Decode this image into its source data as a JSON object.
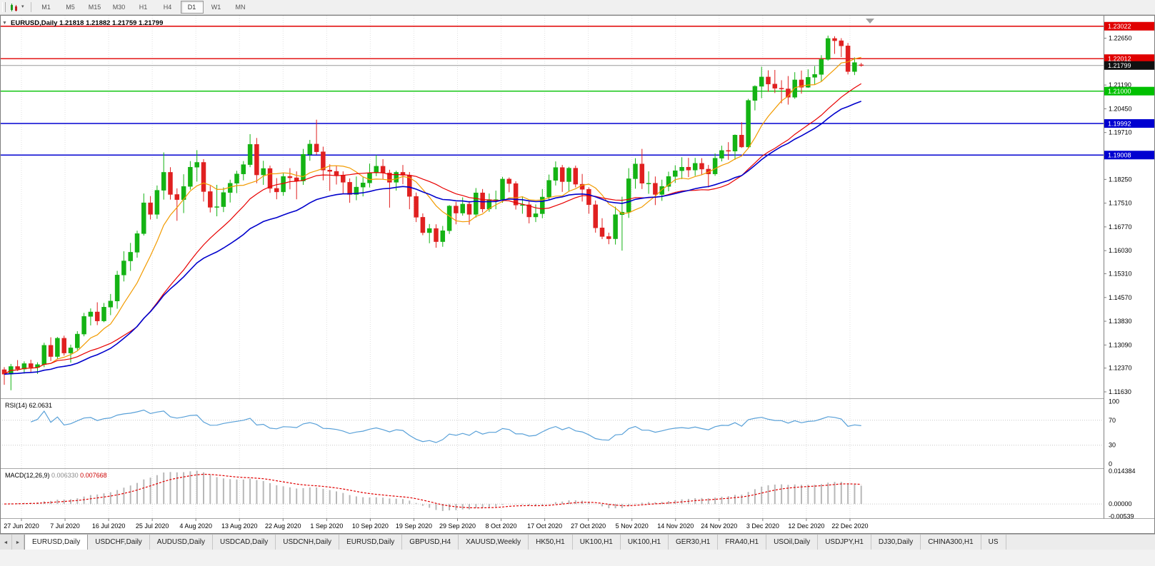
{
  "toolbar": {
    "timeframes": [
      "M1",
      "M5",
      "M15",
      "M30",
      "H1",
      "H4",
      "D1",
      "W1",
      "MN"
    ],
    "active_timeframe": "D1",
    "caret": "▾"
  },
  "window": {
    "title_line": "EURUSD,Daily 1.21818 1.21882 1.21759 1.21799",
    "dropdown_caret": "▼"
  },
  "chart_data": {
    "type": "candlestick",
    "symbol": "EURUSD",
    "period": "Daily",
    "ohlc_current": {
      "open": "1.21818",
      "high": "1.21882",
      "low": "1.21759",
      "close": "1.21799"
    },
    "current_price": 1.21799,
    "current_price_label": "1.21799",
    "price_axis": {
      "min": 1.1143,
      "max": 1.2335,
      "ticks": [
        {
          "v": 1.2265,
          "text": "1.22650"
        },
        {
          "v": 1.2119,
          "text": "1.21190"
        },
        {
          "v": 1.2045,
          "text": "1.20450"
        },
        {
          "v": 1.1971,
          "text": "1.19710"
        },
        {
          "v": 1.1825,
          "text": "1.18250"
        },
        {
          "v": 1.1751,
          "text": "1.17510"
        },
        {
          "v": 1.1677,
          "text": "1.16770"
        },
        {
          "v": 1.1603,
          "text": "1.16030"
        },
        {
          "v": 1.1531,
          "text": "1.15310"
        },
        {
          "v": 1.1457,
          "text": "1.14570"
        },
        {
          "v": 1.1383,
          "text": "1.13830"
        },
        {
          "v": 1.1309,
          "text": "1.13090"
        },
        {
          "v": 1.1237,
          "text": "1.12370"
        },
        {
          "v": 1.1163,
          "text": "1.11630"
        }
      ]
    },
    "horizontal_lines": [
      {
        "price": 1.23022,
        "label": "1.23022",
        "color": "#e00000"
      },
      {
        "price": 1.22012,
        "label": "1.22012",
        "color": "#e00000"
      },
      {
        "price": 1.21,
        "label": "1.21000",
        "color": "#00c000"
      },
      {
        "price": 1.19992,
        "label": "1.19992",
        "color": "#0000d0"
      },
      {
        "price": 1.19008,
        "label": "1.19008",
        "color": "#0000d0"
      }
    ],
    "x_labels": [
      "27 Jun 2020",
      "7 Jul 2020",
      "16 Jul 2020",
      "25 Jul 2020",
      "4 Aug 2020",
      "13 Aug 2020",
      "22 Aug 2020",
      "1 Sep 2020",
      "10 Sep 2020",
      "19 Sep 2020",
      "29 Sep 2020",
      "8 Oct 2020",
      "17 Oct 2020",
      "27 Oct 2020",
      "5 Nov 2020",
      "14 Nov 2020",
      "24 Nov 2020",
      "3 Dec 2020",
      "12 Dec 2020",
      "22 Dec 2020"
    ],
    "colors": {
      "bull": "#14b314",
      "bear": "#e02020",
      "ma_fast": "#f29b00",
      "ma_mid": "#e80000",
      "ma_slow": "#0000cc",
      "grid": "#e0e0e0",
      "current_price_line": "#9a9a9a"
    },
    "moving_averages": [
      {
        "name": "fast",
        "period": 8,
        "type": "sma",
        "color_key": "ma_fast"
      },
      {
        "name": "mid",
        "period": 21,
        "type": "sma",
        "color_key": "ma_mid"
      },
      {
        "name": "slow",
        "period": 30,
        "type": "ema",
        "color_key": "ma_slow"
      }
    ],
    "candles": [
      [
        1.1232,
        1.124,
        1.1185,
        1.1218
      ],
      [
        1.1218,
        1.125,
        1.1168,
        1.1242
      ],
      [
        1.1242,
        1.1262,
        1.1228,
        1.1234
      ],
      [
        1.1234,
        1.1258,
        1.122,
        1.1251
      ],
      [
        1.1251,
        1.1263,
        1.1224,
        1.1239
      ],
      [
        1.1239,
        1.1255,
        1.1219,
        1.1248
      ],
      [
        1.1248,
        1.1316,
        1.124,
        1.1308
      ],
      [
        1.1308,
        1.1333,
        1.1259,
        1.1273
      ],
      [
        1.1273,
        1.1334,
        1.1265,
        1.133
      ],
      [
        1.133,
        1.1338,
        1.1276,
        1.1284
      ],
      [
        1.1284,
        1.131,
        1.1254,
        1.13
      ],
      [
        1.13,
        1.1352,
        1.1293,
        1.1343
      ],
      [
        1.1343,
        1.1409,
        1.1336,
        1.1398
      ],
      [
        1.1398,
        1.1423,
        1.137,
        1.1412
      ],
      [
        1.1412,
        1.1442,
        1.1371,
        1.1384
      ],
      [
        1.1384,
        1.144,
        1.138,
        1.1427
      ],
      [
        1.1427,
        1.1468,
        1.1402,
        1.1446
      ],
      [
        1.1446,
        1.154,
        1.1422,
        1.1527
      ],
      [
        1.1527,
        1.1601,
        1.1507,
        1.1571
      ],
      [
        1.1571,
        1.1627,
        1.154,
        1.1598
      ],
      [
        1.1598,
        1.1665,
        1.1581,
        1.1656
      ],
      [
        1.1656,
        1.1781,
        1.165,
        1.1752
      ],
      [
        1.1752,
        1.1773,
        1.17,
        1.1716
      ],
      [
        1.1716,
        1.1806,
        1.1702,
        1.1791
      ],
      [
        1.1791,
        1.1909,
        1.1762,
        1.1847
      ],
      [
        1.1847,
        1.1863,
        1.1762,
        1.1778
      ],
      [
        1.1778,
        1.1797,
        1.1696,
        1.1762
      ],
      [
        1.1762,
        1.1841,
        1.172,
        1.1803
      ],
      [
        1.1803,
        1.1882,
        1.1793,
        1.1863
      ],
      [
        1.1863,
        1.1916,
        1.1818,
        1.1878
      ],
      [
        1.1878,
        1.1888,
        1.1756,
        1.1787
      ],
      [
        1.1787,
        1.1805,
        1.1722,
        1.1738
      ],
      [
        1.1738,
        1.1808,
        1.171,
        1.174
      ],
      [
        1.174,
        1.18,
        1.1723,
        1.1784
      ],
      [
        1.1784,
        1.1824,
        1.1753,
        1.1813
      ],
      [
        1.1813,
        1.1852,
        1.1782,
        1.1842
      ],
      [
        1.1842,
        1.1882,
        1.1822,
        1.1871
      ],
      [
        1.1871,
        1.1966,
        1.1863,
        1.1934
      ],
      [
        1.1934,
        1.1954,
        1.1813,
        1.1839
      ],
      [
        1.1839,
        1.1883,
        1.1808,
        1.1859
      ],
      [
        1.1859,
        1.1868,
        1.1783,
        1.1797
      ],
      [
        1.1797,
        1.1829,
        1.1763,
        1.1786
      ],
      [
        1.1786,
        1.1844,
        1.1774,
        1.1834
      ],
      [
        1.1834,
        1.186,
        1.1794,
        1.183
      ],
      [
        1.183,
        1.185,
        1.1763,
        1.182
      ],
      [
        1.182,
        1.192,
        1.1808,
        1.1903
      ],
      [
        1.1903,
        1.1948,
        1.1883,
        1.1935
      ],
      [
        1.1935,
        1.2011,
        1.1902,
        1.1911
      ],
      [
        1.1911,
        1.1927,
        1.1822,
        1.1854
      ],
      [
        1.1854,
        1.1872,
        1.1789,
        1.185
      ],
      [
        1.185,
        1.1868,
        1.1809,
        1.1838
      ],
      [
        1.1838,
        1.185,
        1.1781,
        1.1816
      ],
      [
        1.1816,
        1.1828,
        1.1752,
        1.1778
      ],
      [
        1.1778,
        1.1834,
        1.176,
        1.1801
      ],
      [
        1.1801,
        1.1832,
        1.1772,
        1.1814
      ],
      [
        1.1814,
        1.1874,
        1.18,
        1.1845
      ],
      [
        1.1845,
        1.1901,
        1.1835,
        1.1866
      ],
      [
        1.1866,
        1.1888,
        1.1826,
        1.1845
      ],
      [
        1.1845,
        1.1855,
        1.1737,
        1.1816
      ],
      [
        1.1816,
        1.1852,
        1.179,
        1.1847
      ],
      [
        1.1847,
        1.187,
        1.181,
        1.1838
      ],
      [
        1.1838,
        1.1848,
        1.1732,
        1.1772
      ],
      [
        1.1772,
        1.1784,
        1.1692,
        1.1707
      ],
      [
        1.1707,
        1.1719,
        1.1651,
        1.1659
      ],
      [
        1.1659,
        1.1686,
        1.1626,
        1.1672
      ],
      [
        1.1672,
        1.1685,
        1.1612,
        1.1631
      ],
      [
        1.1631,
        1.168,
        1.1615,
        1.1665
      ],
      [
        1.1665,
        1.1745,
        1.1655,
        1.1742
      ],
      [
        1.1742,
        1.1755,
        1.1685,
        1.172
      ],
      [
        1.172,
        1.1769,
        1.1712,
        1.1748
      ],
      [
        1.1748,
        1.1758,
        1.1684,
        1.1716
      ],
      [
        1.1716,
        1.1798,
        1.1706,
        1.1783
      ],
      [
        1.1783,
        1.1795,
        1.1722,
        1.1733
      ],
      [
        1.1733,
        1.1781,
        1.1724,
        1.1762
      ],
      [
        1.1762,
        1.179,
        1.1732,
        1.1762
      ],
      [
        1.1762,
        1.1833,
        1.1752,
        1.1826
      ],
      [
        1.1826,
        1.1831,
        1.1785,
        1.1812
      ],
      [
        1.1812,
        1.1819,
        1.1731,
        1.1745
      ],
      [
        1.1745,
        1.1772,
        1.1718,
        1.1746
      ],
      [
        1.1746,
        1.1758,
        1.1688,
        1.1708
      ],
      [
        1.1708,
        1.1747,
        1.1692,
        1.1718
      ],
      [
        1.1718,
        1.1795,
        1.1704,
        1.177
      ],
      [
        1.177,
        1.184,
        1.1762,
        1.1822
      ],
      [
        1.1822,
        1.1881,
        1.1806,
        1.1862
      ],
      [
        1.1862,
        1.187,
        1.1786,
        1.1818
      ],
      [
        1.1818,
        1.1864,
        1.1787,
        1.186
      ],
      [
        1.186,
        1.1868,
        1.18,
        1.181
      ],
      [
        1.181,
        1.1842,
        1.1756,
        1.1794
      ],
      [
        1.1794,
        1.18,
        1.1718,
        1.1746
      ],
      [
        1.1746,
        1.1759,
        1.1659,
        1.1674
      ],
      [
        1.1674,
        1.1704,
        1.1639,
        1.1647
      ],
      [
        1.1647,
        1.1659,
        1.1623,
        1.164
      ],
      [
        1.164,
        1.174,
        1.1622,
        1.1715
      ],
      [
        1.1715,
        1.1771,
        1.1603,
        1.1723
      ],
      [
        1.1723,
        1.186,
        1.1705,
        1.1827
      ],
      [
        1.1827,
        1.1891,
        1.1796,
        1.1873
      ],
      [
        1.1873,
        1.192,
        1.1795,
        1.1813
      ],
      [
        1.1813,
        1.185,
        1.178,
        1.1813
      ],
      [
        1.1813,
        1.1834,
        1.1745,
        1.1778
      ],
      [
        1.1778,
        1.1824,
        1.1758,
        1.1803
      ],
      [
        1.1803,
        1.1849,
        1.1788,
        1.1834
      ],
      [
        1.1834,
        1.1869,
        1.1814,
        1.1852
      ],
      [
        1.1852,
        1.1894,
        1.1826,
        1.1863
      ],
      [
        1.1863,
        1.1892,
        1.1832,
        1.1854
      ],
      [
        1.1854,
        1.1892,
        1.1836,
        1.1875
      ],
      [
        1.1875,
        1.1891,
        1.1838,
        1.1857
      ],
      [
        1.1857,
        1.187,
        1.18,
        1.1842
      ],
      [
        1.1842,
        1.1906,
        1.1836,
        1.1891
      ],
      [
        1.1891,
        1.193,
        1.1881,
        1.1915
      ],
      [
        1.1915,
        1.1941,
        1.1886,
        1.1913
      ],
      [
        1.1913,
        1.1965,
        1.1886,
        1.1963
      ],
      [
        1.1963,
        1.2003,
        1.1923,
        1.1926
      ],
      [
        1.1926,
        1.2076,
        1.1924,
        1.2071
      ],
      [
        1.2071,
        1.2118,
        1.204,
        1.2115
      ],
      [
        1.2115,
        1.2176,
        1.2078,
        1.2144
      ],
      [
        1.2144,
        1.2165,
        1.2098,
        1.2122
      ],
      [
        1.2122,
        1.2166,
        1.2094,
        1.2109
      ],
      [
        1.2109,
        1.2134,
        1.2062,
        1.2107
      ],
      [
        1.2107,
        1.2147,
        1.2058,
        1.2081
      ],
      [
        1.2081,
        1.2159,
        1.2076,
        1.2135
      ],
      [
        1.2135,
        1.2164,
        1.2092,
        1.2112
      ],
      [
        1.2112,
        1.2168,
        1.211,
        1.2143
      ],
      [
        1.2143,
        1.2178,
        1.212,
        1.2152
      ],
      [
        1.2152,
        1.2212,
        1.213,
        1.2199
      ],
      [
        1.2199,
        1.2273,
        1.2195,
        1.2264
      ],
      [
        1.2264,
        1.2271,
        1.2216,
        1.2257
      ],
      [
        1.2257,
        1.2265,
        1.2206,
        1.2241
      ],
      [
        1.2241,
        1.225,
        1.2152,
        1.2161
      ],
      [
        1.2161,
        1.2205,
        1.215,
        1.2189
      ],
      [
        1.2182,
        1.2188,
        1.2176,
        1.218
      ]
    ],
    "indicators": {
      "rsi": {
        "name": "RSI(14)",
        "value": "62.0631",
        "period": 14,
        "line_color": "#58a0d8",
        "scale": {
          "min": -7,
          "max": 103
        },
        "levels": [
          {
            "v": 100,
            "text": "100",
            "line": false
          },
          {
            "v": 70,
            "text": "70",
            "line": true
          },
          {
            "v": 30,
            "text": "30",
            "line": true
          },
          {
            "v": 0,
            "text": "0",
            "line": false
          }
        ]
      },
      "macd": {
        "name": "MACD(12,26,9)",
        "value_main": "0.006330",
        "value_signal": "0.007668",
        "fast": 12,
        "slow": 26,
        "signal": 9,
        "histogram_color": "#b8b8b8",
        "signal_color": "#e00000",
        "scale": {
          "min": -0.0062,
          "max": 0.015
        },
        "axis_labels": [
          {
            "v": 0.014384,
            "text": "0.014384"
          },
          {
            "v": 0.0,
            "text": "0.00000"
          },
          {
            "v": -0.00539,
            "text": "-0.00539"
          }
        ]
      }
    }
  },
  "tabs": {
    "nav_left": "◄",
    "nav_right": "►",
    "items": [
      {
        "label": "EURUSD,Daily",
        "active": true
      },
      {
        "label": "USDCHF,Daily",
        "active": false
      },
      {
        "label": "AUDUSD,Daily",
        "active": false
      },
      {
        "label": "USDCAD,Daily",
        "active": false
      },
      {
        "label": "USDCNH,Daily",
        "active": false
      },
      {
        "label": "EURUSD,Daily",
        "active": false
      },
      {
        "label": "GBPUSD,H4",
        "active": false
      },
      {
        "label": "XAUUSD,Weekly",
        "active": false
      },
      {
        "label": "HK50,H1",
        "active": false
      },
      {
        "label": "UK100,H1",
        "active": false
      },
      {
        "label": "UK100,H1",
        "active": false
      },
      {
        "label": "GER30,H1",
        "active": false
      },
      {
        "label": "FRA40,H1",
        "active": false
      },
      {
        "label": "USOil,Daily",
        "active": false
      },
      {
        "label": "USDJPY,H1",
        "active": false
      },
      {
        "label": "DJ30,Daily",
        "active": false
      },
      {
        "label": "CHINA300,H1",
        "active": false
      },
      {
        "label": "US",
        "active": false
      }
    ]
  }
}
